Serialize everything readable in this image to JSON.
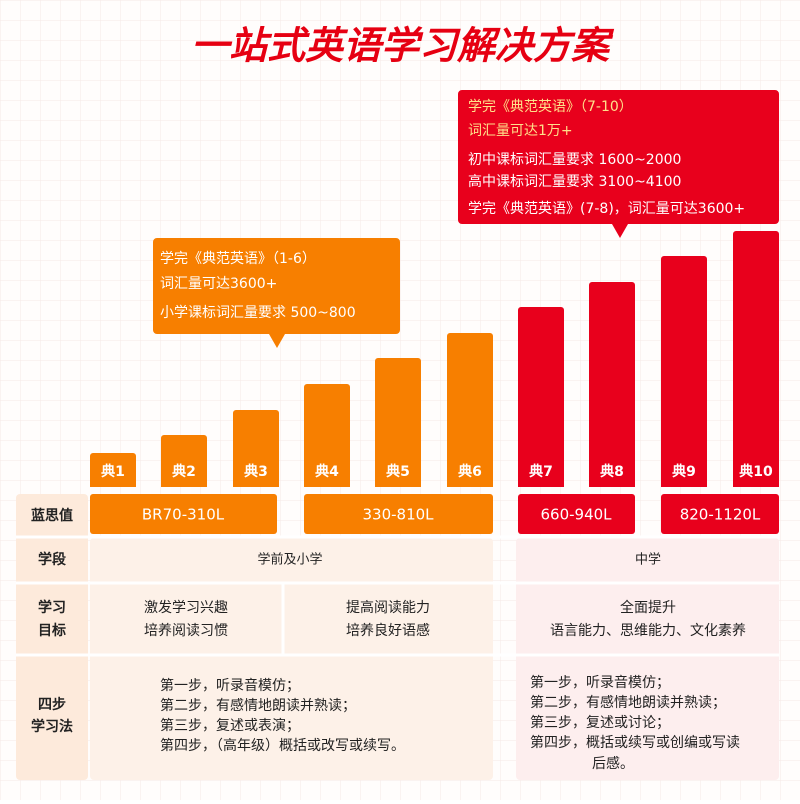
{
  "title": "一站式英语学习解决方案",
  "callouts": [
    {
      "lines": [
        "学完《典范英语》（1-6）",
        "词汇量可达3600+",
        "小学课标词汇量要求 500~800"
      ]
    },
    {
      "lines": [
        "学完《典范英语》（7-10）",
        "词汇量可达1万+",
        "初中课标词汇量要求 1600~2000",
        "高中课标词汇量要求 3100~4100",
        "学完《典范英语》(7-8)，词汇量可达3600+"
      ]
    }
  ],
  "bars": [
    "典1",
    "典2",
    "典3",
    "典4",
    "典5",
    "典6",
    "典7",
    "典8",
    "典9",
    "典10"
  ],
  "table": {
    "lexile": {
      "label": "蓝思值",
      "ranges": [
        "BR70-310L",
        "330-810L",
        "660-940L",
        "820-1120L"
      ]
    },
    "stage": {
      "label": "学段",
      "primary": "学前及小学",
      "secondary": "中学"
    },
    "goals": {
      "label": [
        "学习",
        "目标"
      ],
      "primary_a": [
        "激发学习兴趣",
        "培养阅读习惯"
      ],
      "primary_b": [
        "提高阅读能力",
        "培养良好语感"
      ],
      "secondary": [
        "全面提升",
        "语言能力、思维能力、文化素养"
      ]
    },
    "method": {
      "label": [
        "四步",
        "学习法"
      ],
      "primary": [
        "第一步，听录音模仿；",
        "第二步，有感情地朗读并熟读；",
        "第三步，复述或表演；",
        "第四步，（高年级）概括或改写或续写。"
      ],
      "secondary": [
        "第一步，听录音模仿；",
        "第二步，有感情地朗读并熟读；",
        "第三步，复述或讨论；",
        "第四步，概括或续写或创编或写读",
        "后感。"
      ]
    }
  }
}
